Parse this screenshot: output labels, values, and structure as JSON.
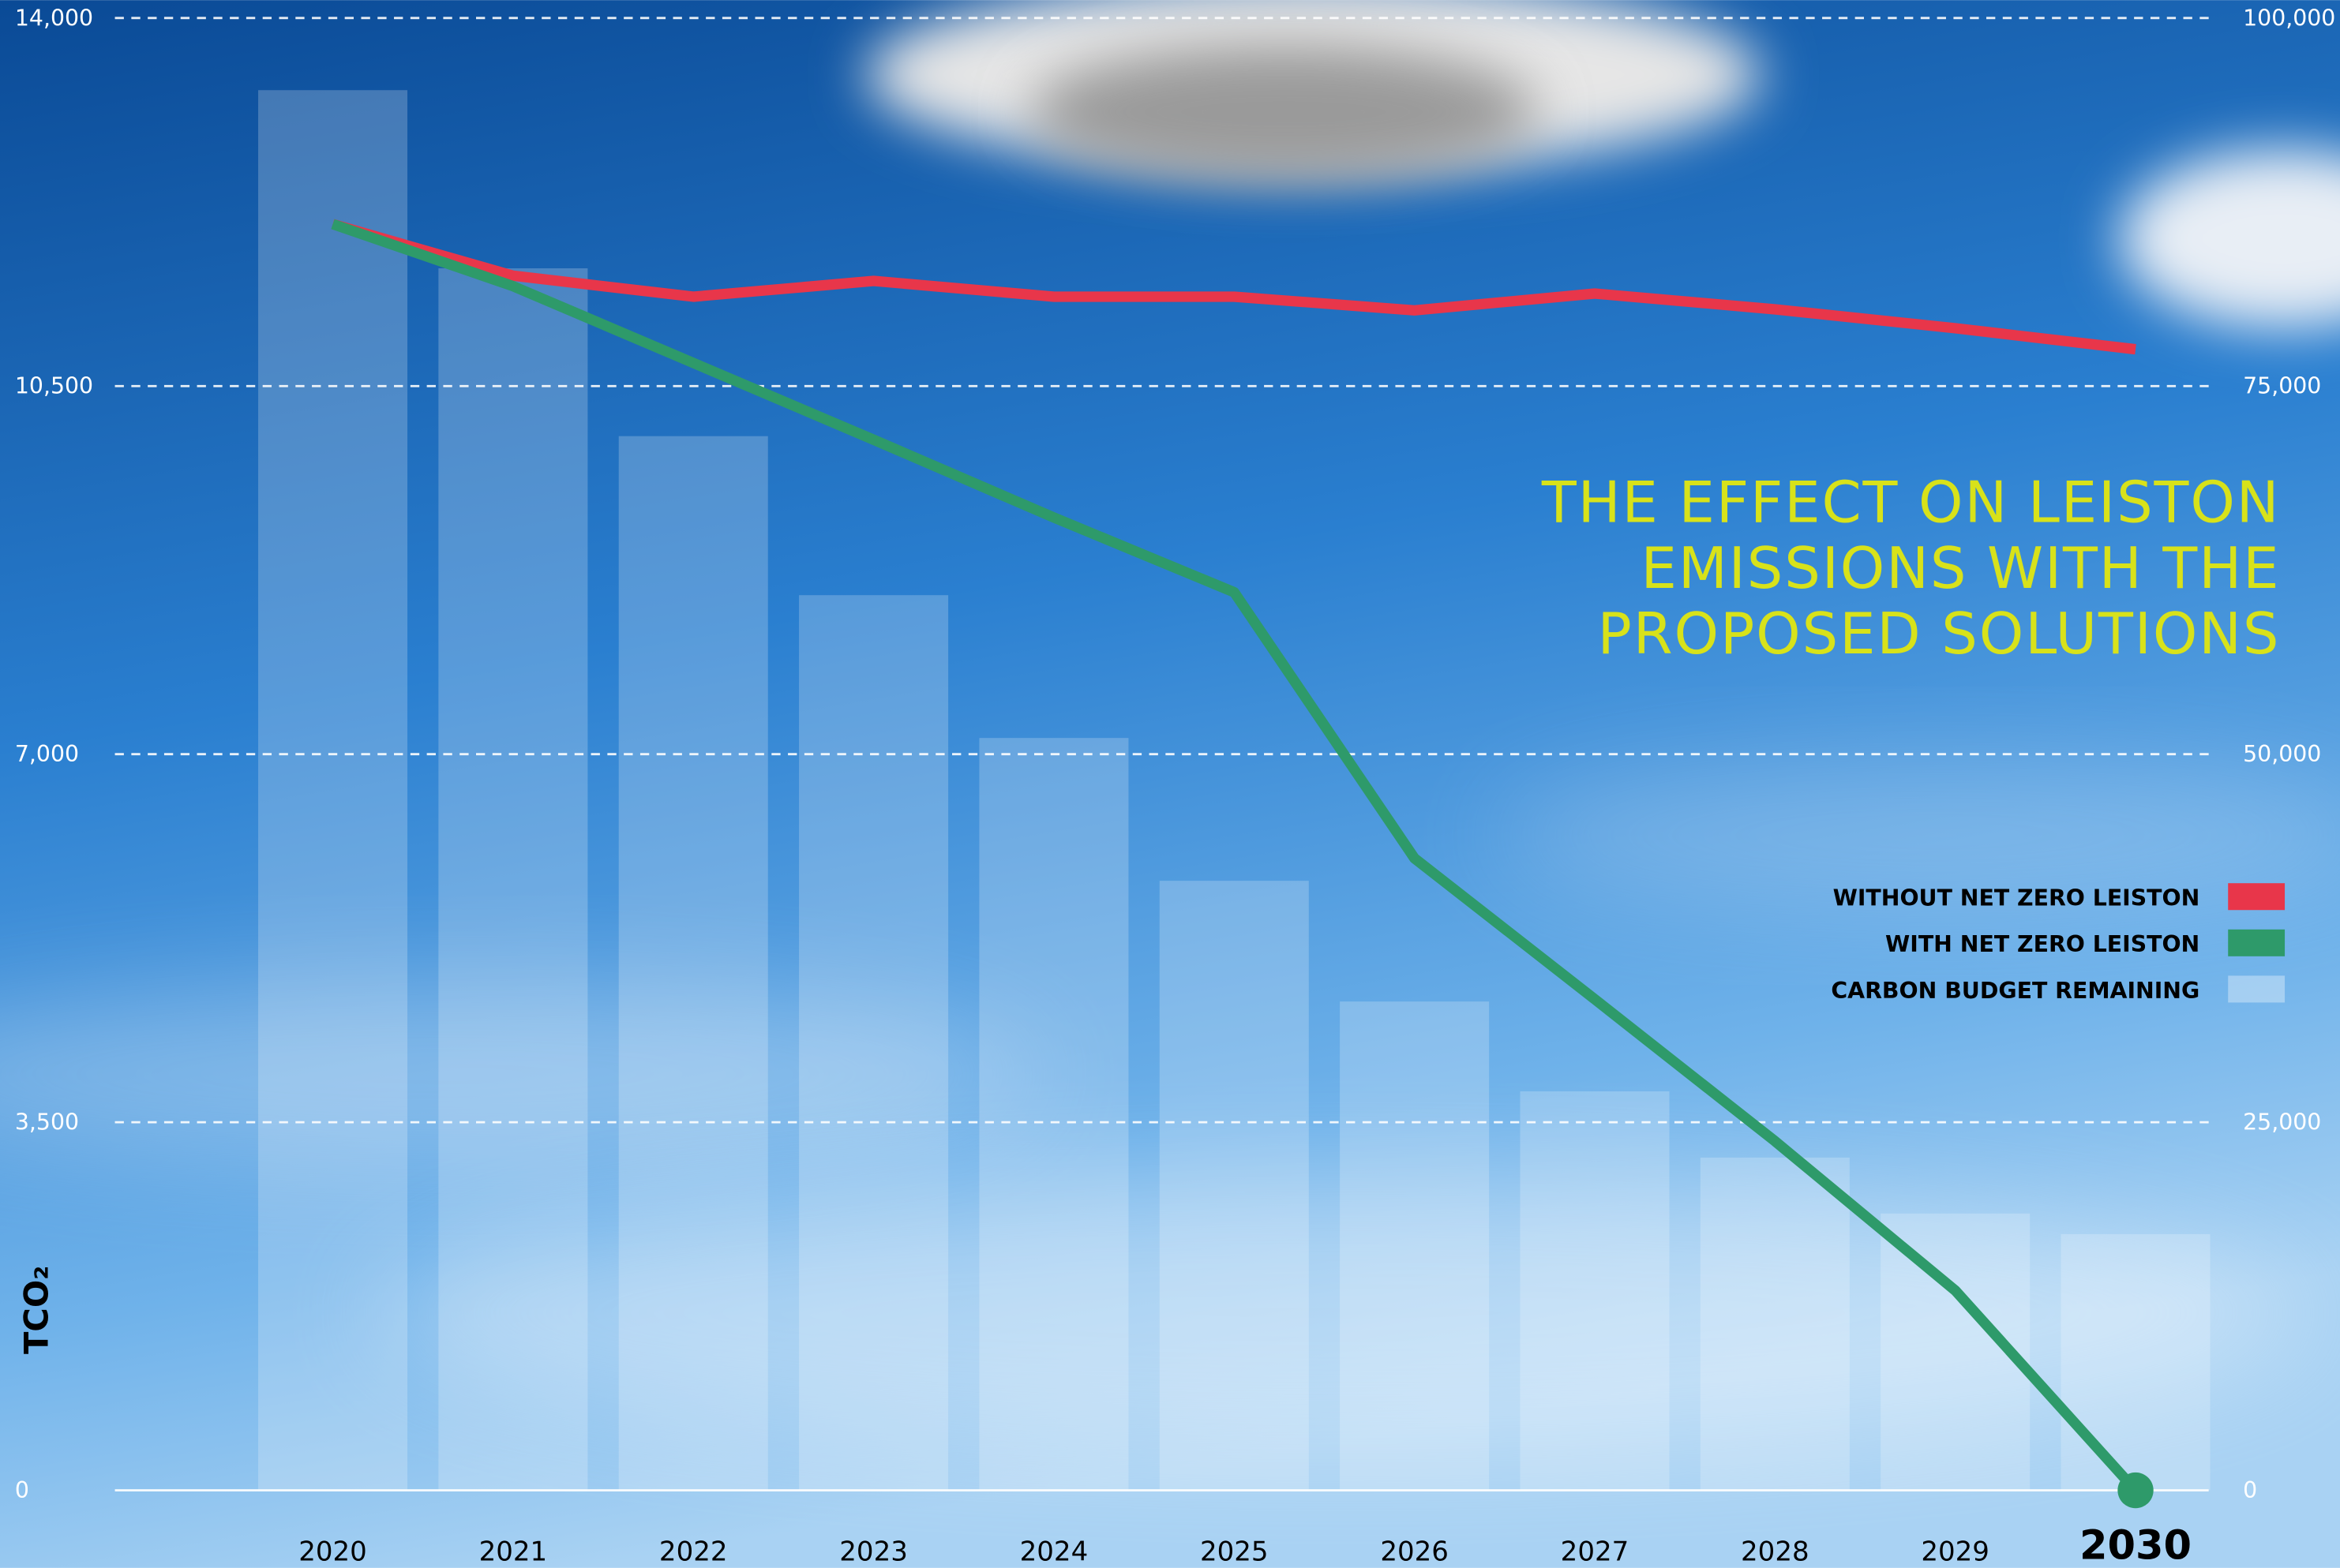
{
  "chart_data": {
    "type": "combo",
    "title": [
      "THE EFFECT ON LEISTON",
      "EMISSIONS WITH THE",
      "PROPOSED SOLUTIONS"
    ],
    "ylabel": "TCO₂",
    "categories": [
      "2020",
      "2021",
      "2022",
      "2023",
      "2024",
      "2025",
      "2026",
      "2027",
      "2028",
      "2029",
      "2030"
    ],
    "ylim": [
      0,
      14000
    ],
    "yticks": [
      0,
      {
        "value": 3500,
        "label": "3,500"
      },
      {
        "value": 7000,
        "label": "7,000"
      },
      {
        "value": 10500,
        "label": "10,500"
      },
      {
        "value": 14000,
        "label": "14,000"
      }
    ],
    "y2lim": [
      0,
      100000
    ],
    "y2ticks": [
      0,
      {
        "value": 25000,
        "label": "25,000"
      },
      {
        "value": 50000,
        "label": "50,000"
      },
      {
        "value": 75000,
        "label": "75,000"
      },
      {
        "value": 100000,
        "label": "100,000"
      }
    ],
    "grid": true,
    "legend": "right",
    "series": [
      {
        "name": "WITHOUT NET ZERO LEISTON",
        "type": "line",
        "color": "#e8364a",
        "values": [
          12040,
          11550,
          11350,
          11500,
          11350,
          11350,
          11220,
          11380,
          11230,
          11050,
          10850
        ]
      },
      {
        "name": "WITH NET ZERO LEISTON",
        "type": "line",
        "color": "#2e9a6a",
        "values": [
          12040,
          11450,
          10720,
          9990,
          9250,
          8540,
          6010,
          4670,
          3320,
          1900,
          0
        ]
      },
      {
        "name": "CARBON BUDGET REMAINING",
        "type": "bar",
        "axis": "y2",
        "color": "#ffffff",
        "values": [
          95100,
          83000,
          71600,
          60800,
          51100,
          41400,
          33200,
          27100,
          22600,
          18800,
          17400
        ]
      }
    ]
  }
}
